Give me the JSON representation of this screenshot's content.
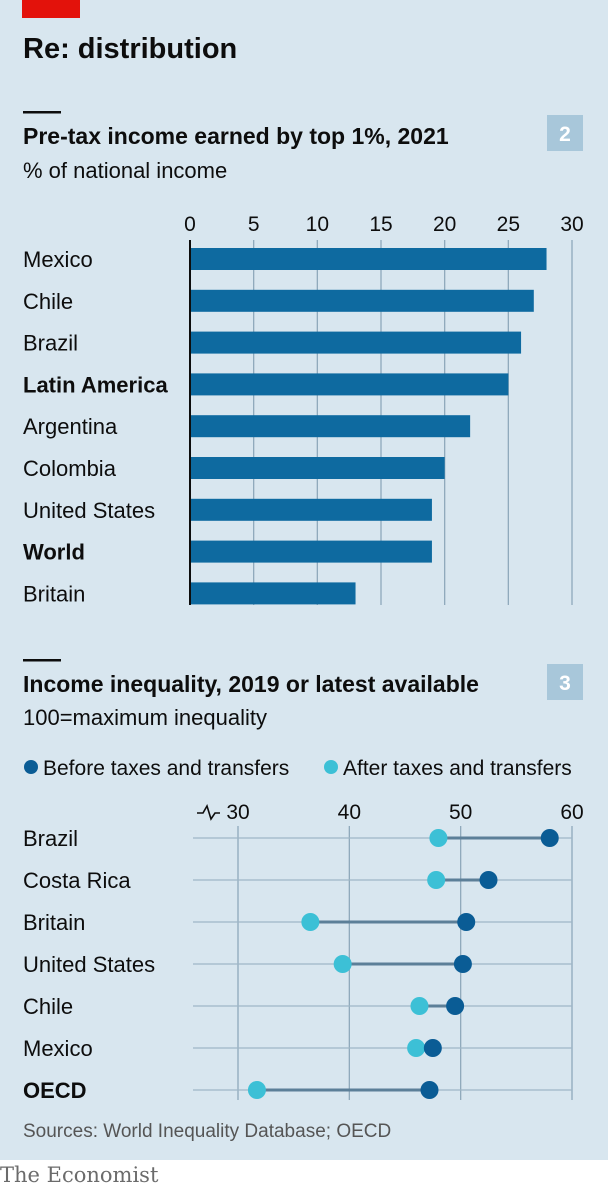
{
  "title": "Re: distribution",
  "footer": "The Economist",
  "colors": {
    "background": "#d8e6ef",
    "brand_red": "#e3120b",
    "bar": "#0e6aa0",
    "before": "#0a5c95",
    "after": "#3cc0d6",
    "connector": "#5c7f98",
    "badge": "#a8c7da"
  },
  "chart_data": [
    {
      "type": "bar",
      "number": "2",
      "title": "Pre-tax income earned by top 1%, 2021",
      "subtitle": "% of national income",
      "orientation": "horizontal",
      "categories": [
        "Mexico",
        "Chile",
        "Brazil",
        "Latin America",
        "Argentina",
        "Colombia",
        "United States",
        "World",
        "Britain"
      ],
      "bold_categories": [
        "Latin America",
        "World"
      ],
      "values": [
        28.0,
        27.0,
        26.0,
        25.0,
        22.0,
        20.0,
        19.0,
        19.0,
        13.0
      ],
      "ticks": [
        "0",
        "5",
        "10",
        "15",
        "20",
        "25",
        "30"
      ],
      "xlim": [
        0,
        30
      ],
      "grid": true
    },
    {
      "type": "scatter",
      "subtype": "dumbbell",
      "number": "3",
      "title": "Income inequality, 2019 or latest available",
      "subtitle": "100=maximum inequality",
      "legend": [
        "Before taxes and transfers",
        "After taxes and transfers"
      ],
      "legend_placement": "top",
      "categories": [
        "Brazil",
        "Costa Rica",
        "Britain",
        "United States",
        "Chile",
        "Mexico",
        "OECD"
      ],
      "bold_categories": [
        "OECD"
      ],
      "series": [
        {
          "name": "Before taxes and transfers",
          "values": [
            58.0,
            52.5,
            50.5,
            50.2,
            49.5,
            47.5,
            47.2
          ]
        },
        {
          "name": "After taxes and transfers",
          "values": [
            48.0,
            47.8,
            36.5,
            39.4,
            46.3,
            46.0,
            31.7
          ]
        }
      ],
      "ticks": [
        "30",
        "40",
        "50",
        "60"
      ],
      "axis_break": true,
      "xlim": [
        30,
        60
      ],
      "grid": true
    }
  ],
  "source": "Sources: World Inequality Database; OECD"
}
